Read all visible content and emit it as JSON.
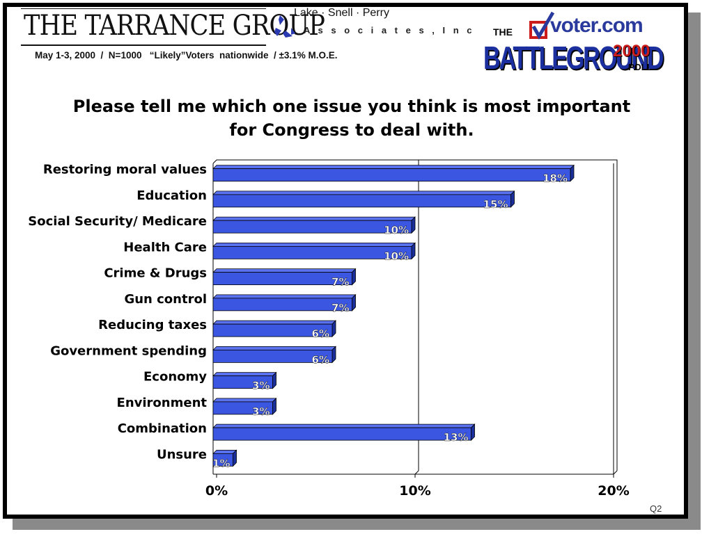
{
  "header": {
    "firm_name": "THE TARRANCE GROUP",
    "partner_name": "Lake · Snell · Perry",
    "partner_sub": "A s s o c i a t e s ,  I n c",
    "survey_info": "May 1-3, 2000  /  N=1000   “Likely”Voters  nationwide  / ±3.1% M.O.E.",
    "sponsor": {
      "the": "THE",
      "site": "voter.com",
      "battleground": "BATTLEGROUND",
      "year": "2000",
      "poll": "POLL"
    }
  },
  "question_id": "Q2",
  "colors": {
    "bar": "#3b56e0",
    "bar_top": "#5b72f0",
    "bar_side": "#1a2f9a",
    "frame_shadow": "#8a8a8a"
  },
  "chart_data": {
    "type": "bar",
    "orientation": "horizontal",
    "title": "Please tell me which one issue you think is most important for Congress to deal with.",
    "title_lines": [
      "Please tell me which one issue you think is most important",
      "for Congress to deal with."
    ],
    "categories": [
      "Restoring moral values",
      "Education",
      "Social Security/ Medicare",
      "Health Care",
      "Crime & Drugs",
      "Gun control",
      "Reducing taxes",
      "Government spending",
      "Economy",
      "Environment",
      "Combination",
      "Unsure"
    ],
    "values": [
      18,
      15,
      10,
      10,
      7,
      7,
      6,
      6,
      3,
      3,
      13,
      1
    ],
    "value_labels": [
      "18%",
      "15%",
      "10%",
      "10%",
      "7%",
      "7%",
      "6%",
      "6%",
      "3%",
      "3%",
      "13%",
      "1%"
    ],
    "xlim": [
      0,
      20
    ],
    "xticks": [
      0,
      10,
      20
    ],
    "xtick_labels": [
      "0%",
      "10%",
      "20%"
    ],
    "grid": "vertical at 10%",
    "xlabel": "",
    "ylabel": ""
  }
}
